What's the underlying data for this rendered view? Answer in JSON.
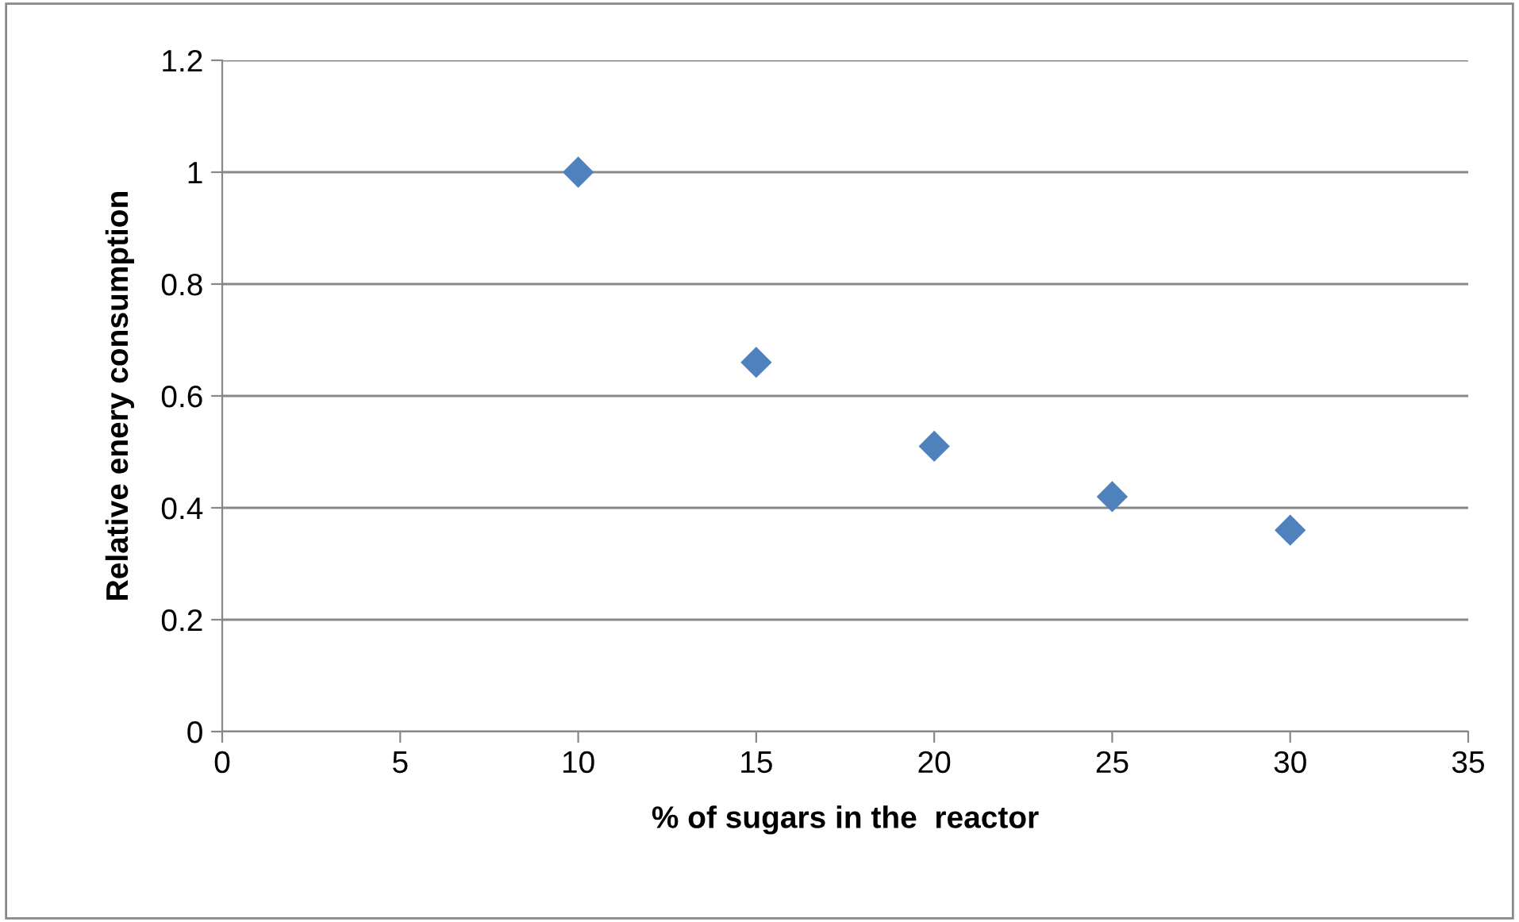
{
  "chart_data": {
    "type": "scatter",
    "xlabel": "% of sugars in the  reactor",
    "ylabel": "Relative enery consumption",
    "x": [
      10,
      15,
      20,
      25,
      30
    ],
    "series": [
      {
        "color": "#4f81bd",
        "values": [
          1.0,
          0.66,
          0.51,
          0.42,
          0.36
        ]
      }
    ],
    "xlim": [
      0,
      35
    ],
    "xticks": [
      0,
      5,
      10,
      15,
      20,
      25,
      30,
      35
    ],
    "ylim": [
      0,
      1.2
    ],
    "yticks": [
      0,
      0.2,
      0.4,
      0.6,
      0.8,
      1,
      1.2
    ],
    "grid": "y",
    "marker": "diamond",
    "legend": false
  }
}
